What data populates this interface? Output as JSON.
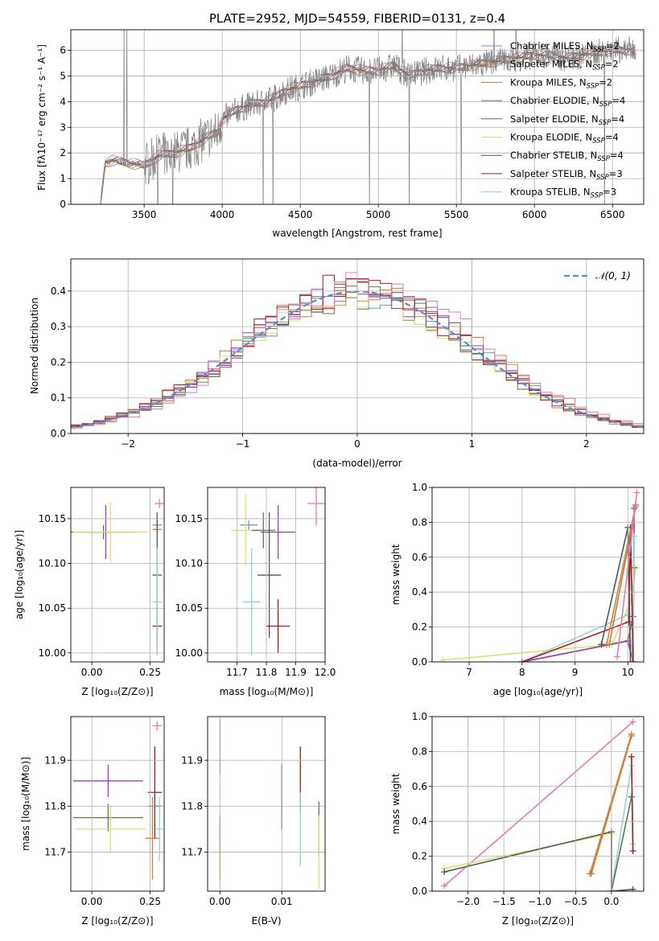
{
  "colors": {
    "Chabrier MILES": "#6a8fd6",
    "Salpeter MILES": "#e07d3a",
    "Kroupa MILES": "#c87a2e",
    "Chabrier ELODIE": "#5d7a5d",
    "Salpeter ELODIE": "#9a3fb0",
    "Kroupa ELODIE": "#d9e36a",
    "Chabrier STELIB": "#555555",
    "Salpeter STELIB": "#b01818",
    "Kroupa STELIB": "#8fd4df",
    "pink": "#e879b4",
    "normal": "#5b8bd4",
    "spectrum": "#808080"
  },
  "chart_data": [
    {
      "type": "line",
      "title": "PLATE=2952, MJD=54559, FIBERID=0131, z=0.4",
      "xlabel": "wavelength [Angstrom, rest frame]",
      "ylabel": "Flux [fλ10⁻¹⁷ erg cm⁻² s⁻¹ A⁻¹]",
      "xlim": [
        3030,
        6700
      ],
      "ylim": [
        0,
        6.8
      ],
      "xticks": [
        3500,
        4000,
        4500,
        5000,
        5500,
        6000,
        6500
      ],
      "yticks": [
        0,
        1,
        2,
        3,
        4,
        5,
        6
      ],
      "grid": true,
      "legend_position": "top-right",
      "legend": [
        "Chabrier MILES, N_SSP=2",
        "Salpeter MILES, N_SSP=2",
        "Kroupa MILES, N_SSP=2",
        "Chabrier ELODIE, N_SSP=4",
        "Salpeter ELODIE, N_SSP=4",
        "Kroupa ELODIE, N_SSP=4",
        "Chabrier STELIB, N_SSP=4",
        "Salpeter STELIB, N_SSP=3",
        "Kroupa STELIB, N_SSP=3"
      ],
      "spectrum_anchor_points": {
        "x": [
          3220,
          3250,
          3300,
          3400,
          3500,
          3600,
          3700,
          3800,
          3900,
          3970,
          4000,
          4100,
          4200,
          4300,
          4400,
          4500,
          4600,
          4700,
          4800,
          4900,
          5000,
          5100,
          5200,
          5300,
          5400,
          5500,
          5600,
          5700,
          5800,
          5900,
          6000,
          6100,
          6200,
          6300,
          6400,
          6500,
          6600
        ],
        "y": [
          0,
          1.6,
          1.7,
          1.6,
          1.5,
          1.9,
          2.0,
          2.2,
          2.6,
          2.8,
          3.3,
          3.7,
          3.9,
          4.0,
          4.4,
          4.6,
          4.8,
          5.0,
          5.3,
          5.2,
          5.2,
          5.4,
          5.0,
          5.2,
          5.3,
          5.3,
          5.4,
          5.5,
          5.6,
          5.7,
          5.8,
          5.8,
          5.7,
          5.8,
          5.9,
          6.0,
          6.0
        ]
      }
    },
    {
      "type": "line",
      "xlabel": "(data-model)/error",
      "ylabel": "Normed distribution",
      "xlim": [
        -2.5,
        2.5
      ],
      "ylim": [
        0,
        0.49
      ],
      "xticks": [
        -2,
        -1,
        0,
        1,
        2
      ],
      "yticks": [
        0.0,
        0.1,
        0.2,
        0.3,
        0.4
      ],
      "grid": true,
      "legend": [
        "𝒩(0, 1)"
      ],
      "legend_position": "top-right",
      "histogram_bin_width": 0.1,
      "series": [
        {
          "name": "Chabrier MILES",
          "center_shift": 0.0,
          "scale": 1.0
        },
        {
          "name": "Salpeter MILES",
          "center_shift": 0.05,
          "scale": 1.02
        },
        {
          "name": "Kroupa MILES",
          "center_shift": -0.05,
          "scale": 1.0
        },
        {
          "name": "Chabrier ELODIE",
          "center_shift": 0.02,
          "scale": 0.98
        },
        {
          "name": "Salpeter ELODIE",
          "center_shift": -0.02,
          "scale": 1.01
        },
        {
          "name": "Kroupa ELODIE",
          "center_shift": 0.0,
          "scale": 0.97
        },
        {
          "name": "Chabrier STELIB",
          "center_shift": 0.03,
          "scale": 1.0
        },
        {
          "name": "Salpeter STELIB",
          "center_shift": -0.03,
          "scale": 1.03
        },
        {
          "name": "pink",
          "center_shift": 0.1,
          "scale": 1.05
        }
      ]
    },
    {
      "type": "scatter",
      "xlabel": "Z [log₁₀(Z/Z⊙)]",
      "ylabel": "age  [log₁₀(age/yr)]",
      "xlim": [
        -0.09,
        0.31
      ],
      "ylim": [
        9.99,
        10.185
      ],
      "xticks": [
        0.0,
        0.25
      ],
      "yticks": [
        10.0,
        10.05,
        10.1,
        10.15
      ],
      "grid": true,
      "errorbars": [
        {
          "color": "Chabrier MILES",
          "x": 0.28,
          "y": 10.143,
          "xerr": 0.02,
          "yerr": 0.005
        },
        {
          "color": "Salpeter MILES",
          "x": 0.28,
          "y": 10.138,
          "xerr": 0.02,
          "yerr": 0.004
        },
        {
          "color": "Chabrier ELODIE",
          "x": 0.05,
          "y": 10.135,
          "xerr": 0.14,
          "yerr": 0.008
        },
        {
          "color": "Salpeter ELODIE",
          "x": 0.06,
          "y": 10.135,
          "xerr": 0.1,
          "yerr": 0.03
        },
        {
          "color": "Kroupa ELODIE",
          "x": 0.08,
          "y": 10.135,
          "xerr": 0.16,
          "yerr": 0.033
        },
        {
          "color": "Chabrier STELIB",
          "x": 0.28,
          "y": 10.087,
          "xerr": 0.02,
          "yerr": 0.07
        },
        {
          "color": "Salpeter STELIB",
          "x": 0.28,
          "y": 10.03,
          "xerr": 0.02,
          "yerr": 0.03
        },
        {
          "color": "Kroupa STELIB",
          "x": 0.28,
          "y": 10.057,
          "xerr": 0.02,
          "yerr": 0.06
        },
        {
          "color": "pink",
          "x": 0.29,
          "y": 10.167,
          "xerr": 0.02,
          "yerr": 0.005
        }
      ]
    },
    {
      "type": "scatter",
      "xlabel": "mass [log₁₀(M/M⊙)]",
      "xlim": [
        11.6,
        12.0
      ],
      "ylim": [
        9.99,
        10.185
      ],
      "xticks": [
        11.7,
        11.8,
        11.9,
        12.0
      ],
      "xticklabels": [
        "11.7",
        "11.8",
        "11.9",
        "12.0"
      ],
      "yticks": [
        10.0,
        10.05,
        10.1,
        10.15
      ],
      "grid": true,
      "errorbars": [
        {
          "color": "Chabrier MILES",
          "x": 11.74,
          "y": 10.143,
          "xerr": 0.03,
          "yerr": 0.005
        },
        {
          "color": "Kroupa ELODIE",
          "x": 11.73,
          "y": 10.137,
          "xerr": 0.05,
          "yerr": 0.04
        },
        {
          "color": "Salpeter ELODIE",
          "x": 11.84,
          "y": 10.135,
          "xerr": 0.06,
          "yerr": 0.03
        },
        {
          "color": "Chabrier ELODIE",
          "x": 11.79,
          "y": 10.137,
          "xerr": 0.04,
          "yerr": 0.02
        },
        {
          "color": "Chabrier STELIB",
          "x": 11.81,
          "y": 10.087,
          "xerr": 0.04,
          "yerr": 0.07
        },
        {
          "color": "Salpeter STELIB",
          "x": 11.84,
          "y": 10.03,
          "xerr": 0.04,
          "yerr": 0.03
        },
        {
          "color": "Kroupa STELIB",
          "x": 11.75,
          "y": 10.057,
          "xerr": 0.03,
          "yerr": 0.06
        },
        {
          "color": "pink",
          "x": 11.97,
          "y": 10.167,
          "xerr": 0.03,
          "yerr": 0.025
        }
      ]
    },
    {
      "type": "line",
      "xlabel": "age  [log₁₀(age/yr)]",
      "ylabel": "mass weight",
      "xlim": [
        6.3,
        10.3
      ],
      "ylim": [
        0,
        1.0
      ],
      "xticks": [
        7,
        8,
        9,
        10
      ],
      "yticks": [
        0.0,
        0.2,
        0.4,
        0.6,
        0.8,
        1.0
      ],
      "grid": true,
      "series": [
        {
          "name": "Kroupa ELODIE",
          "x": [
            6.5,
            9.7,
            10.05,
            10.15
          ],
          "y": [
            0.01,
            0.1,
            0.34,
            0.54
          ]
        },
        {
          "name": "Chabrier ELODIE",
          "x": [
            8.0,
            10.0,
            10.1,
            10.12
          ],
          "y": [
            0.0,
            0.12,
            0.26,
            0.54
          ]
        },
        {
          "name": "Salpeter ELODIE",
          "x": [
            8.0,
            10.0,
            10.1,
            10.12
          ],
          "y": [
            0.0,
            0.12,
            0.0,
            0.88
          ]
        },
        {
          "name": "Kroupa STELIB",
          "x": [
            8.0,
            10.0,
            10.1,
            10.12
          ],
          "y": [
            0.0,
            0.27,
            0.0,
            0.72
          ]
        },
        {
          "name": "Salpeter STELIB",
          "x": [
            8.0,
            10.02,
            10.05,
            10.1
          ],
          "y": [
            0.0,
            0.23,
            0.77,
            0.0
          ]
        },
        {
          "name": "Salpeter MILES",
          "x": [
            9.6,
            10.15
          ],
          "y": [
            0.1,
            0.9
          ]
        },
        {
          "name": "Kroupa MILES",
          "x": [
            9.65,
            10.15
          ],
          "y": [
            0.1,
            0.89
          ]
        },
        {
          "name": "Chabrier STELIB",
          "x": [
            9.5,
            10.0,
            10.05
          ],
          "y": [
            0.1,
            0.77,
            0.0
          ]
        },
        {
          "name": "pink",
          "x": [
            9.8,
            10.17
          ],
          "y": [
            0.03,
            0.97
          ]
        }
      ]
    },
    {
      "type": "scatter",
      "xlabel": "Z [log₁₀(Z/Z⊙)]",
      "ylabel": "mass [log₁₀(M/M⊙)]",
      "xlim": [
        -0.09,
        0.31
      ],
      "ylim": [
        11.615,
        11.995
      ],
      "xticks": [
        0.0,
        0.25
      ],
      "yticks": [
        11.7,
        11.8,
        11.9
      ],
      "grid": true,
      "errorbars": [
        {
          "color": "Salpeter ELODIE",
          "x": 0.07,
          "y": 11.855,
          "xerr": 0.15,
          "yerr": 0.035
        },
        {
          "color": "Chabrier ELODIE",
          "x": 0.07,
          "y": 11.775,
          "xerr": 0.15,
          "yerr": 0.03
        },
        {
          "color": "Kroupa ELODIE",
          "x": 0.08,
          "y": 11.75,
          "xerr": 0.15,
          "yerr": 0.05
        },
        {
          "color": "Salpeter STELIB",
          "x": 0.27,
          "y": 11.83,
          "xerr": 0.03,
          "yerr": 0.1
        },
        {
          "color": "Chabrier STELIB",
          "x": 0.27,
          "y": 11.8,
          "xerr": 0.03,
          "yerr": 0.05
        },
        {
          "color": "Salpeter MILES",
          "x": 0.26,
          "y": 11.73,
          "xerr": 0.03,
          "yerr": 0.09
        },
        {
          "color": "Kroupa STELIB",
          "x": 0.29,
          "y": 11.75,
          "xerr": 0.015,
          "yerr": 0.07
        },
        {
          "color": "pink",
          "x": 0.28,
          "y": 11.975,
          "xerr": 0.02,
          "yerr": 0.01
        }
      ]
    },
    {
      "type": "scatter",
      "xlabel": "E(B-V)",
      "xlim": [
        -0.002,
        0.017
      ],
      "ylim": [
        11.615,
        11.995
      ],
      "xticks": [
        0.0,
        0.01
      ],
      "xticklabels": [
        "0.00",
        "0.01"
      ],
      "yticks": [
        11.7,
        11.8,
        11.9
      ],
      "grid": true,
      "errorbars": [
        {
          "color": "Salpeter MILES",
          "x": 0.0,
          "y": 11.7,
          "xerr": 0,
          "yerr": 0.06
        },
        {
          "color": "Chabrier MILES",
          "x": 0.0,
          "y": 11.75,
          "xerr": 0,
          "yerr": 0.03
        },
        {
          "color": "pink",
          "x": 0.0,
          "y": 11.93,
          "xerr": 0,
          "yerr": 0.06
        },
        {
          "color": "Salpeter ELODIE",
          "x": 0.01,
          "y": 11.82,
          "xerr": 0,
          "yerr": 0.07
        },
        {
          "color": "Salpeter STELIB",
          "x": 0.013,
          "y": 11.86,
          "xerr": 0,
          "yerr": 0.07
        },
        {
          "color": "Kroupa STELIB",
          "x": 0.013,
          "y": 11.75,
          "xerr": 0,
          "yerr": 0.08
        },
        {
          "color": "Chabrier ELODIE",
          "x": 0.016,
          "y": 11.75,
          "xerr": 0,
          "yerr": 0.06
        },
        {
          "color": "Kroupa ELODIE",
          "x": 0.016,
          "y": 11.7,
          "xerr": 0,
          "yerr": 0.08
        }
      ]
    },
    {
      "type": "line",
      "xlabel": "Z [log₁₀(Z/Z⊙)]",
      "ylabel": "mass weight",
      "xlim": [
        -2.5,
        0.45
      ],
      "ylim": [
        0,
        1.0
      ],
      "xticks": [
        -2.0,
        -1.5,
        -1.0,
        -0.5,
        0.0
      ],
      "yticks": [
        0.0,
        0.2,
        0.4,
        0.6,
        0.8,
        1.0
      ],
      "grid": true,
      "series": [
        {
          "name": "pink",
          "x": [
            -2.33,
            0.3
          ],
          "y": [
            0.03,
            0.97
          ]
        },
        {
          "name": "Kroupa ELODIE",
          "x": [
            -2.33,
            0.0,
            0.0,
            0.28
          ],
          "y": [
            0.13,
            0.33,
            0.0,
            0.54
          ]
        },
        {
          "name": "Chabrier STELIB",
          "x": [
            -2.33,
            0.0,
            0.0,
            0.3
          ],
          "y": [
            0.11,
            0.34,
            0.0,
            0.01
          ]
        },
        {
          "name": "Salpeter MILES",
          "x": [
            -0.3,
            0.28
          ],
          "y": [
            0.1,
            0.9
          ]
        },
        {
          "name": "Kroupa MILES",
          "x": [
            -0.28,
            0.28
          ],
          "y": [
            0.1,
            0.89
          ]
        },
        {
          "name": "Kroupa STELIB",
          "x": [
            0.0,
            0.28,
            0.3
          ],
          "y": [
            0.0,
            0.72,
            0.27
          ]
        },
        {
          "name": "Salpeter STELIB",
          "x": [
            0.28,
            0.3
          ],
          "y": [
            0.77,
            0.23
          ]
        },
        {
          "name": "Chabrier ELODIE",
          "x": [
            0.0,
            0.28
          ],
          "y": [
            0.0,
            0.54
          ]
        }
      ]
    }
  ]
}
